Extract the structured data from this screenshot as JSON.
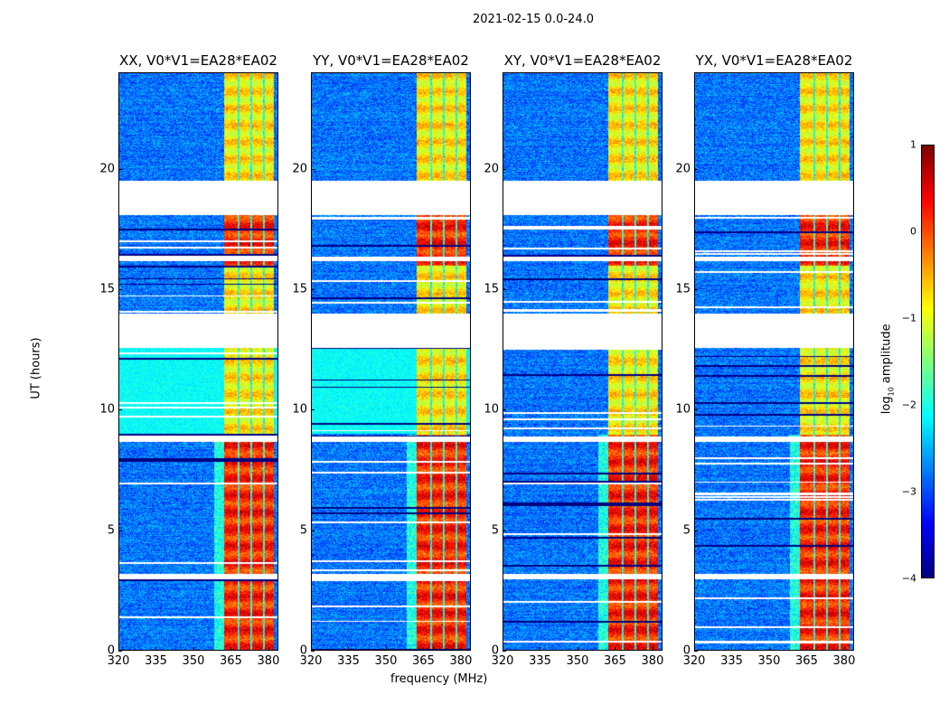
{
  "suptitle": "2021-02-15 0.0-24.0",
  "chart_data": {
    "type": "heatmap",
    "title": "2021-02-15 0.0-24.0",
    "xlabel": "frequency (MHz)",
    "ylabel": "UT (hours)",
    "xlim": [
      320,
      384
    ],
    "ylim": [
      0,
      24
    ],
    "xticks": [
      "320",
      "335",
      "350",
      "365",
      "380"
    ],
    "yticks": [
      "0",
      "5",
      "10",
      "15",
      "20"
    ],
    "panels": [
      {
        "title": "XX, V0*V1=EA28*EA02",
        "pol": "XX"
      },
      {
        "title": "YY, V0*V1=EA28*EA02",
        "pol": "YY"
      },
      {
        "title": "XY, V0*V1=EA28*EA02",
        "pol": "XY"
      },
      {
        "title": "YX, V0*V1=EA28*EA02",
        "pol": "YX"
      }
    ],
    "bright_band_mhz": [
      362,
      382
    ],
    "band_gaps_mhz": [
      368,
      373,
      378
    ],
    "flagged_hours": [
      [
        18.1,
        19.5
      ],
      [
        12.6,
        14.0
      ],
      [
        8.7,
        8.9
      ],
      [
        3.0,
        3.2
      ],
      [
        16.2,
        16.35
      ]
    ],
    "background_log_amp": -2.8,
    "band_log_amp_night": 0.2,
    "band_log_amp_day": -0.8,
    "colorbar": {
      "label": "log10 amplitude",
      "label_main": "log",
      "label_sub": "10",
      "label_rest": " amplitude",
      "range": [
        -4,
        1
      ],
      "ticks": [
        "1",
        "0",
        "−1",
        "−2",
        "−3",
        "−4"
      ],
      "colormap": "jet"
    }
  }
}
